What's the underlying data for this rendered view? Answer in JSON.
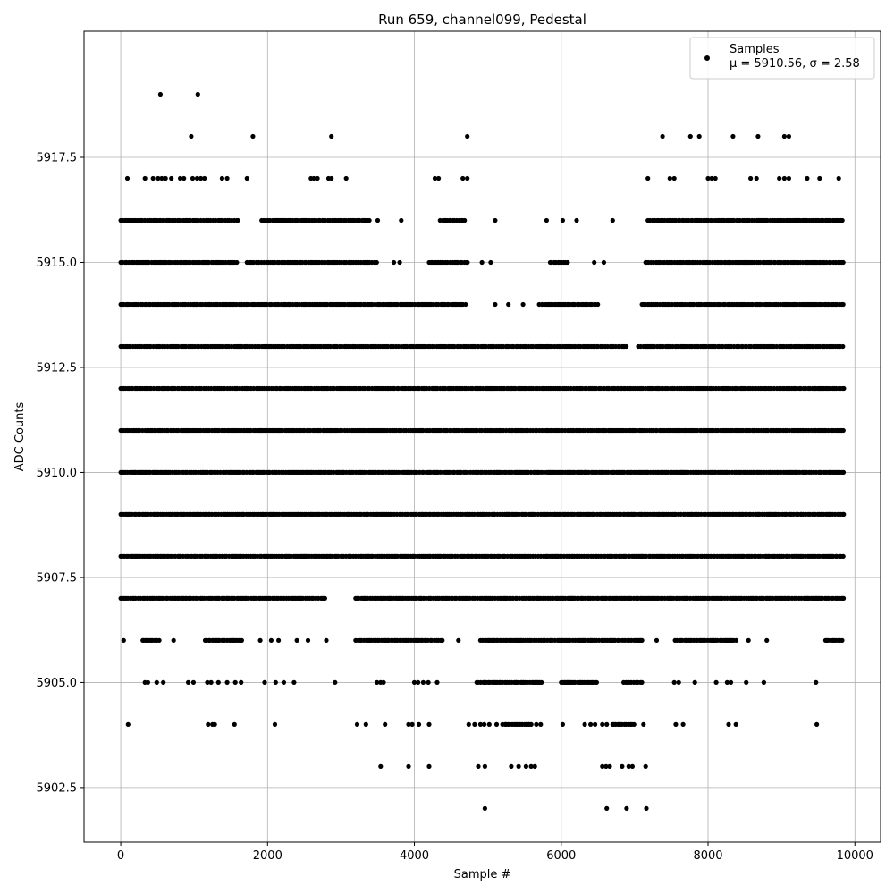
{
  "chart_data": {
    "type": "scatter",
    "title": "Run 659, channel099, Pedestal",
    "xlabel": "Sample #",
    "ylabel": "ADC Counts",
    "xlim": [
      -500,
      10350
    ],
    "ylim": [
      5901.2,
      5920.5
    ],
    "xticks": [
      0,
      2000,
      4000,
      6000,
      8000,
      10000
    ],
    "xtick_labels": [
      "0",
      "2000",
      "4000",
      "6000",
      "8000",
      "10000"
    ],
    "yticks": [
      5902.5,
      5905.0,
      5907.5,
      5910.0,
      5912.5,
      5915.0,
      5917.5
    ],
    "ytick_labels": [
      "5902.5",
      "5905.0",
      "5907.5",
      "5910.0",
      "5912.5",
      "5915.0",
      "5917.5"
    ],
    "grid": true,
    "legend_position": "top-right",
    "marker_color": "#000000",
    "series": [
      {
        "name": "Samples",
        "label_line2": "μ = 5910.56, σ = 2.58",
        "x_range": [
          0,
          9850
        ],
        "count": 9850,
        "level_points": [
          {
            "y": 5919,
            "x": [
              540,
              1050
            ]
          },
          {
            "y": 5918,
            "x": [
              960,
              1800,
              2870,
              4720,
              7380,
              7760,
              7880,
              8340,
              8680,
              9040,
              9100
            ]
          },
          {
            "y": 5917,
            "x": [
              90,
              330,
              440,
              510,
              560,
              610,
              690,
              810,
              860,
              980,
              1040,
              1090,
              1140,
              1380,
              1450,
              1720,
              2590,
              2630,
              2680,
              2830,
              2870,
              3070,
              4280,
              4330,
              4660,
              4720,
              7180,
              7480,
              7540,
              8000,
              8050,
              8100,
              8580,
              8660,
              8970,
              9040,
              9100,
              9350,
              9520,
              9780
            ]
          },
          {
            "y": 5903,
            "x": [
              3540,
              3920,
              4200,
              4870,
              4960,
              5320,
              5420,
              5520,
              5590,
              5640,
              6560,
              6610,
              6660,
              6830,
              6920,
              6970,
              7150
            ]
          },
          {
            "y": 5902,
            "x": [
              4960,
              6620,
              6890,
              7160
            ]
          }
        ],
        "level_bands": [
          {
            "y": 5916,
            "segments": [
              [
                0,
                1600
              ],
              [
                1920,
                3400
              ],
              [
                4350,
                4700
              ],
              [
                7180,
                9850
              ]
            ],
            "isolated": [
              3500,
              3820,
              5100,
              5800,
              6020,
              6210,
              6700
            ]
          },
          {
            "y": 5915,
            "segments": [
              [
                0,
                1600
              ],
              [
                1720,
                3500
              ],
              [
                4200,
                4750
              ],
              [
                5850,
                6100
              ],
              [
                7150,
                9850
              ]
            ],
            "isolated": [
              3720,
              3800,
              4920,
              5040,
              6450,
              6580
            ]
          },
          {
            "y": 5914,
            "segments": [
              [
                0,
                1650
              ],
              [
                1650,
                4700
              ],
              [
                5700,
                6500
              ],
              [
                7100,
                9850
              ]
            ],
            "isolated": [
              5100,
              5280,
              5480
            ]
          },
          {
            "y": 5913,
            "segments": [
              [
                0,
                5800
              ],
              [
                5800,
                6900
              ],
              [
                7050,
                9850
              ]
            ]
          },
          {
            "y": 5912,
            "segments": [
              [
                0,
                9850
              ]
            ]
          },
          {
            "y": 5911,
            "segments": [
              [
                0,
                9850
              ]
            ]
          },
          {
            "y": 5910,
            "segments": [
              [
                0,
                9850
              ]
            ]
          },
          {
            "y": 5909,
            "segments": [
              [
                0,
                9850
              ]
            ]
          },
          {
            "y": 5908,
            "segments": [
              [
                0,
                9850
              ]
            ]
          },
          {
            "y": 5907,
            "segments": [
              [
                0,
                2800
              ],
              [
                3200,
                9850
              ]
            ]
          },
          {
            "y": 5906,
            "segments": [
              [
                300,
                550
              ],
              [
                1150,
                1650
              ],
              [
                3200,
                4400
              ],
              [
                4900,
                7100
              ],
              [
                7550,
                8400
              ],
              [
                9600,
                9850
              ]
            ],
            "isolated": [
              40,
              720,
              1900,
              2050,
              2150,
              2400,
              2550,
              2800,
              4600,
              7300,
              8550,
              8800
            ]
          },
          {
            "y": 5905,
            "segments": [
              [
                4850,
                5750
              ],
              [
                6000,
                6500
              ],
              [
                6850,
                7100
              ]
            ],
            "isolated": [
              330,
              370,
              490,
              580,
              920,
              990,
              1180,
              1230,
              1330,
              1450,
              1560,
              1640,
              1960,
              2110,
              2220,
              2360,
              2920,
              3490,
              3540,
              3580,
              4000,
              4050,
              4120,
              4190,
              4310,
              7540,
              7600,
              7820,
              8110,
              8260,
              8310,
              8520,
              8760,
              9470
            ]
          },
          {
            "y": 5904,
            "segments": [
              [
                5200,
                5600
              ],
              [
                6700,
                7000
              ]
            ],
            "isolated": [
              100,
              1190,
              1250,
              1280,
              1550,
              2100,
              3220,
              3340,
              3600,
              3920,
              3970,
              4060,
              4200,
              4740,
              4820,
              4900,
              4950,
              5020,
              5120,
              5660,
              5720,
              6020,
              6320,
              6400,
              6460,
              6560,
              6620,
              7120,
              7560,
              7660,
              8280,
              8380,
              9480
            ]
          }
        ]
      }
    ]
  }
}
